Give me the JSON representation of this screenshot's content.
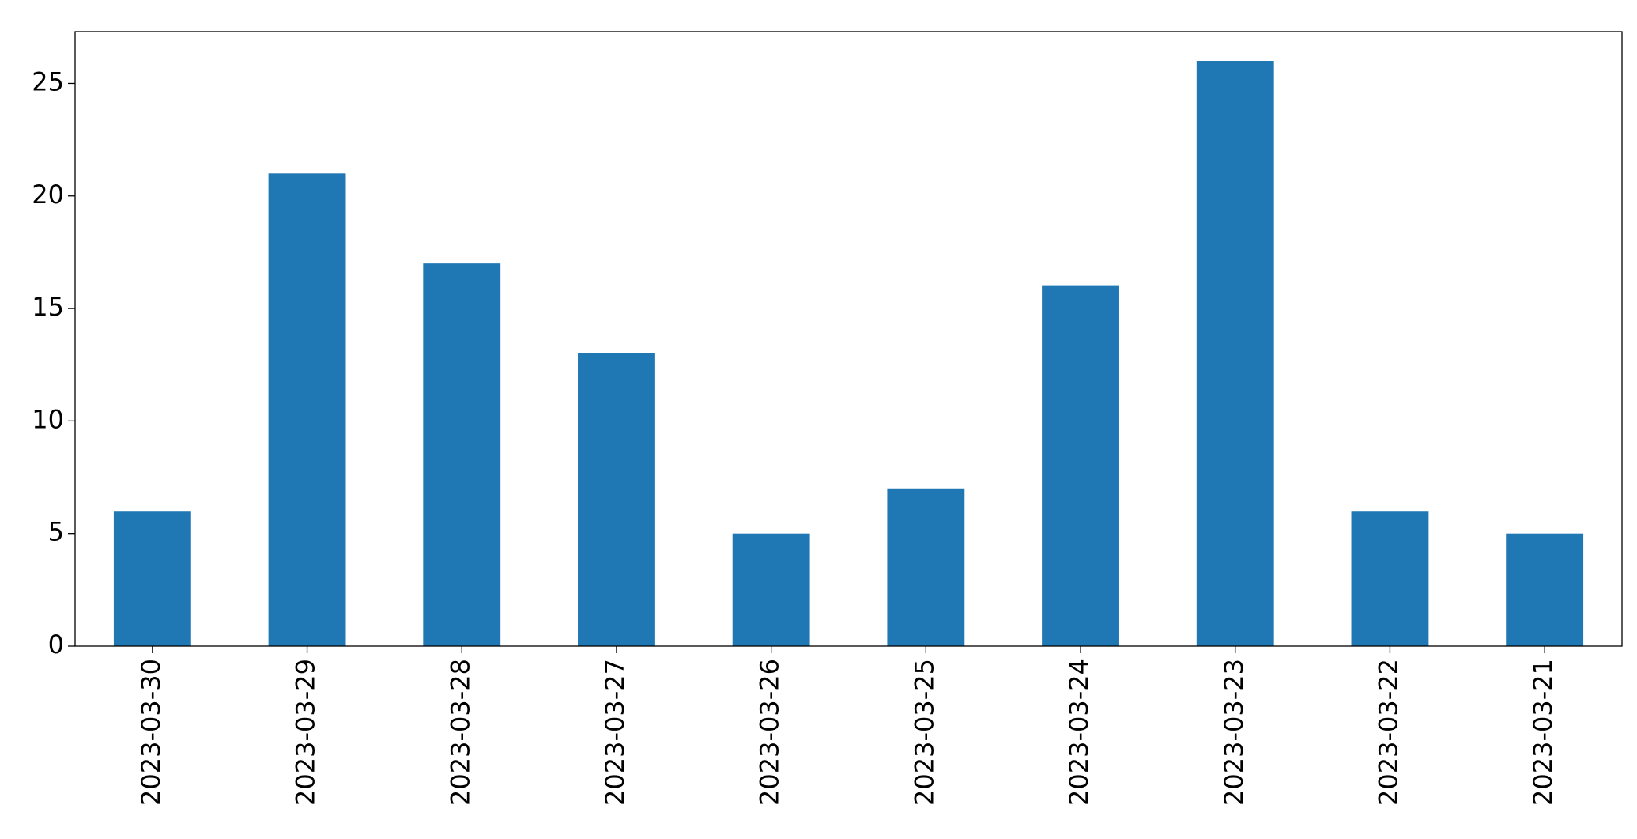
{
  "chart_data": {
    "type": "bar",
    "categories": [
      "2023-03-30",
      "2023-03-29",
      "2023-03-28",
      "2023-03-27",
      "2023-03-26",
      "2023-03-25",
      "2023-03-24",
      "2023-03-23",
      "2023-03-22",
      "2023-03-21"
    ],
    "values": [
      6,
      21,
      17,
      13,
      5,
      7,
      16,
      26,
      6,
      5
    ],
    "color": "#1f77b4",
    "ylim": [
      0,
      27.3
    ],
    "yticks": [
      0,
      5,
      10,
      15,
      20,
      25
    ],
    "grid": false
  }
}
